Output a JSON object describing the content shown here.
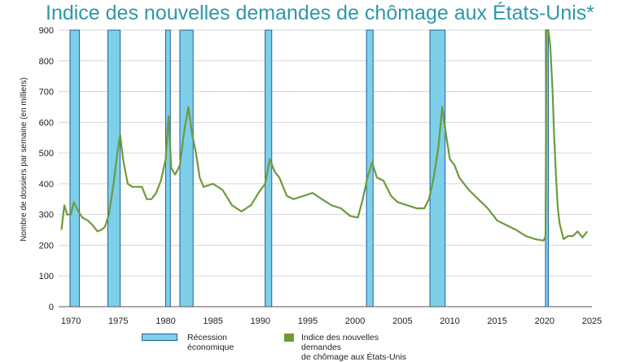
{
  "chart_data": {
    "type": "line",
    "title": "Indice des nouvelles demandes de chômage aux États-Unis*",
    "xlabel": "",
    "ylabel": "Nombre de dossiers par semaine (en milliers)",
    "xlim": [
      1968.7,
      2025
    ],
    "ylim": [
      0,
      900
    ],
    "x_ticks": [
      1970,
      1975,
      1980,
      1985,
      1990,
      1995,
      2000,
      2005,
      2010,
      2015,
      2020,
      2025
    ],
    "y_ticks": [
      0,
      100,
      200,
      300,
      400,
      500,
      600,
      700,
      800,
      900
    ],
    "grid": "horizontal",
    "legend_position": "bottom",
    "recessions": [
      {
        "start": 1969.9,
        "end": 1970.9
      },
      {
        "start": 1973.9,
        "end": 1975.2
      },
      {
        "start": 1980.0,
        "end": 1980.5
      },
      {
        "start": 1981.5,
        "end": 1982.9
      },
      {
        "start": 1990.5,
        "end": 1991.2
      },
      {
        "start": 2001.2,
        "end": 2001.9
      },
      {
        "start": 2007.9,
        "end": 2009.5
      },
      {
        "start": 2020.1,
        "end": 2020.4
      }
    ],
    "series": [
      {
        "name": "Indice des nouvelles demandes de chômage aux États-Unis",
        "color": "#6d9b3c",
        "points": [
          [
            1969.0,
            250
          ],
          [
            1969.3,
            330
          ],
          [
            1969.6,
            300
          ],
          [
            1970.0,
            300
          ],
          [
            1970.3,
            340
          ],
          [
            1970.8,
            310
          ],
          [
            1971.2,
            290
          ],
          [
            1971.8,
            280
          ],
          [
            1972.3,
            265
          ],
          [
            1972.8,
            245
          ],
          [
            1973.2,
            250
          ],
          [
            1973.6,
            260
          ],
          [
            1974.0,
            300
          ],
          [
            1974.5,
            400
          ],
          [
            1974.9,
            500
          ],
          [
            1975.2,
            560
          ],
          [
            1975.5,
            480
          ],
          [
            1976.0,
            400
          ],
          [
            1976.5,
            390
          ],
          [
            1977.0,
            390
          ],
          [
            1977.5,
            390
          ],
          [
            1978.0,
            350
          ],
          [
            1978.5,
            350
          ],
          [
            1979.0,
            370
          ],
          [
            1979.5,
            410
          ],
          [
            1980.0,
            480
          ],
          [
            1980.3,
            620
          ],
          [
            1980.6,
            450
          ],
          [
            1981.0,
            430
          ],
          [
            1981.5,
            460
          ],
          [
            1982.0,
            580
          ],
          [
            1982.4,
            650
          ],
          [
            1982.8,
            560
          ],
          [
            1983.2,
            500
          ],
          [
            1983.6,
            420
          ],
          [
            1984.0,
            390
          ],
          [
            1985.0,
            400
          ],
          [
            1986.0,
            380
          ],
          [
            1987.0,
            330
          ],
          [
            1988.0,
            310
          ],
          [
            1989.0,
            330
          ],
          [
            1989.8,
            370
          ],
          [
            1990.5,
            400
          ],
          [
            1991.0,
            480
          ],
          [
            1991.5,
            440
          ],
          [
            1992.0,
            420
          ],
          [
            1992.8,
            360
          ],
          [
            1993.5,
            350
          ],
          [
            1994.5,
            360
          ],
          [
            1995.5,
            370
          ],
          [
            1996.5,
            350
          ],
          [
            1997.5,
            330
          ],
          [
            1998.5,
            320
          ],
          [
            1999.5,
            295
          ],
          [
            2000.3,
            290
          ],
          [
            2000.8,
            350
          ],
          [
            2001.3,
            420
          ],
          [
            2001.8,
            470
          ],
          [
            2002.3,
            420
          ],
          [
            2003.0,
            410
          ],
          [
            2003.8,
            360
          ],
          [
            2004.5,
            340
          ],
          [
            2005.5,
            330
          ],
          [
            2006.5,
            320
          ],
          [
            2007.3,
            320
          ],
          [
            2007.8,
            350
          ],
          [
            2008.3,
            420
          ],
          [
            2008.8,
            520
          ],
          [
            2009.2,
            650
          ],
          [
            2009.6,
            560
          ],
          [
            2010.0,
            480
          ],
          [
            2010.5,
            460
          ],
          [
            2011.0,
            420
          ],
          [
            2012.0,
            380
          ],
          [
            2013.0,
            350
          ],
          [
            2014.0,
            320
          ],
          [
            2015.0,
            280
          ],
          [
            2016.0,
            265
          ],
          [
            2017.0,
            250
          ],
          [
            2018.0,
            230
          ],
          [
            2019.0,
            220
          ],
          [
            2019.9,
            215
          ],
          [
            2020.1,
            230
          ],
          [
            2020.2,
            900
          ],
          [
            2020.4,
            900
          ],
          [
            2020.6,
            850
          ],
          [
            2020.85,
            700
          ],
          [
            2021.0,
            560
          ],
          [
            2021.2,
            430
          ],
          [
            2021.4,
            320
          ],
          [
            2021.6,
            270
          ],
          [
            2022.0,
            220
          ],
          [
            2022.5,
            230
          ],
          [
            2023.0,
            230
          ],
          [
            2023.5,
            245
          ],
          [
            2024.0,
            225
          ],
          [
            2024.5,
            245
          ]
        ]
      }
    ],
    "legend": [
      {
        "label": "Récession\néconomique",
        "kind": "recession",
        "color": "#7ecfea",
        "stroke": "#1f5f9d"
      },
      {
        "label": "Indice des nouvelles demandes\nde chômage aux États-Unis",
        "kind": "series",
        "color": "#6d9b3c"
      }
    ]
  }
}
